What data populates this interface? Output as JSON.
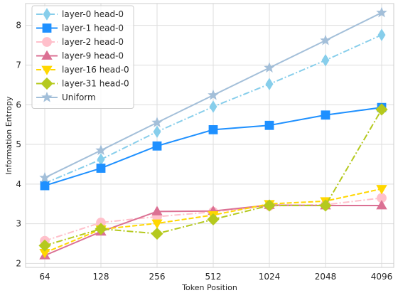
{
  "chart_data": {
    "type": "line",
    "title": "",
    "xlabel": "Token Position",
    "ylabel": "Information Entropy",
    "categories": [
      "64",
      "128",
      "256",
      "512",
      "1024",
      "2048",
      "4096"
    ],
    "ylim": [
      1.9,
      8.55
    ],
    "yticks": [
      2,
      3,
      4,
      5,
      6,
      7,
      8
    ],
    "grid": true,
    "legend_position": "top-left",
    "series": [
      {
        "name": "layer-0 head-0",
        "values": [
          4.02,
          4.62,
          5.32,
          5.95,
          6.52,
          7.12,
          7.76
        ],
        "color": "#87ceeb",
        "dash": "dashdot",
        "marker": "thin_diamond"
      },
      {
        "name": "layer-1 head-0",
        "values": [
          3.96,
          4.4,
          4.96,
          5.37,
          5.48,
          5.74,
          5.93
        ],
        "color": "#1e90ff",
        "dash": "solid",
        "marker": "square"
      },
      {
        "name": "layer-2 head-0",
        "values": [
          2.57,
          3.03,
          3.18,
          3.3,
          3.45,
          3.48,
          3.65
        ],
        "color": "#ffc0cb",
        "dash": "dashdot",
        "marker": "circle"
      },
      {
        "name": "layer-9 head-0",
        "values": [
          2.2,
          2.8,
          3.31,
          3.32,
          3.47,
          3.46,
          3.46
        ],
        "color": "#db7093",
        "dash": "solid",
        "marker": "triangle_up"
      },
      {
        "name": "layer-16 head-0",
        "values": [
          2.27,
          2.86,
          3.01,
          3.22,
          3.5,
          3.57,
          3.88
        ],
        "color": "#ffd700",
        "dash": "dashed",
        "marker": "triangle_down"
      },
      {
        "name": "layer-31 head-0",
        "values": [
          2.45,
          2.87,
          2.75,
          3.11,
          3.46,
          3.46,
          5.88
        ],
        "color": "#b5c91e",
        "dash": "dashdot",
        "marker": "diamond"
      },
      {
        "name": "Uniform",
        "values": [
          4.16,
          4.85,
          5.55,
          6.24,
          6.93,
          7.62,
          8.32
        ],
        "color": "#a3bfd9",
        "dash": "solid",
        "marker": "star"
      }
    ]
  }
}
